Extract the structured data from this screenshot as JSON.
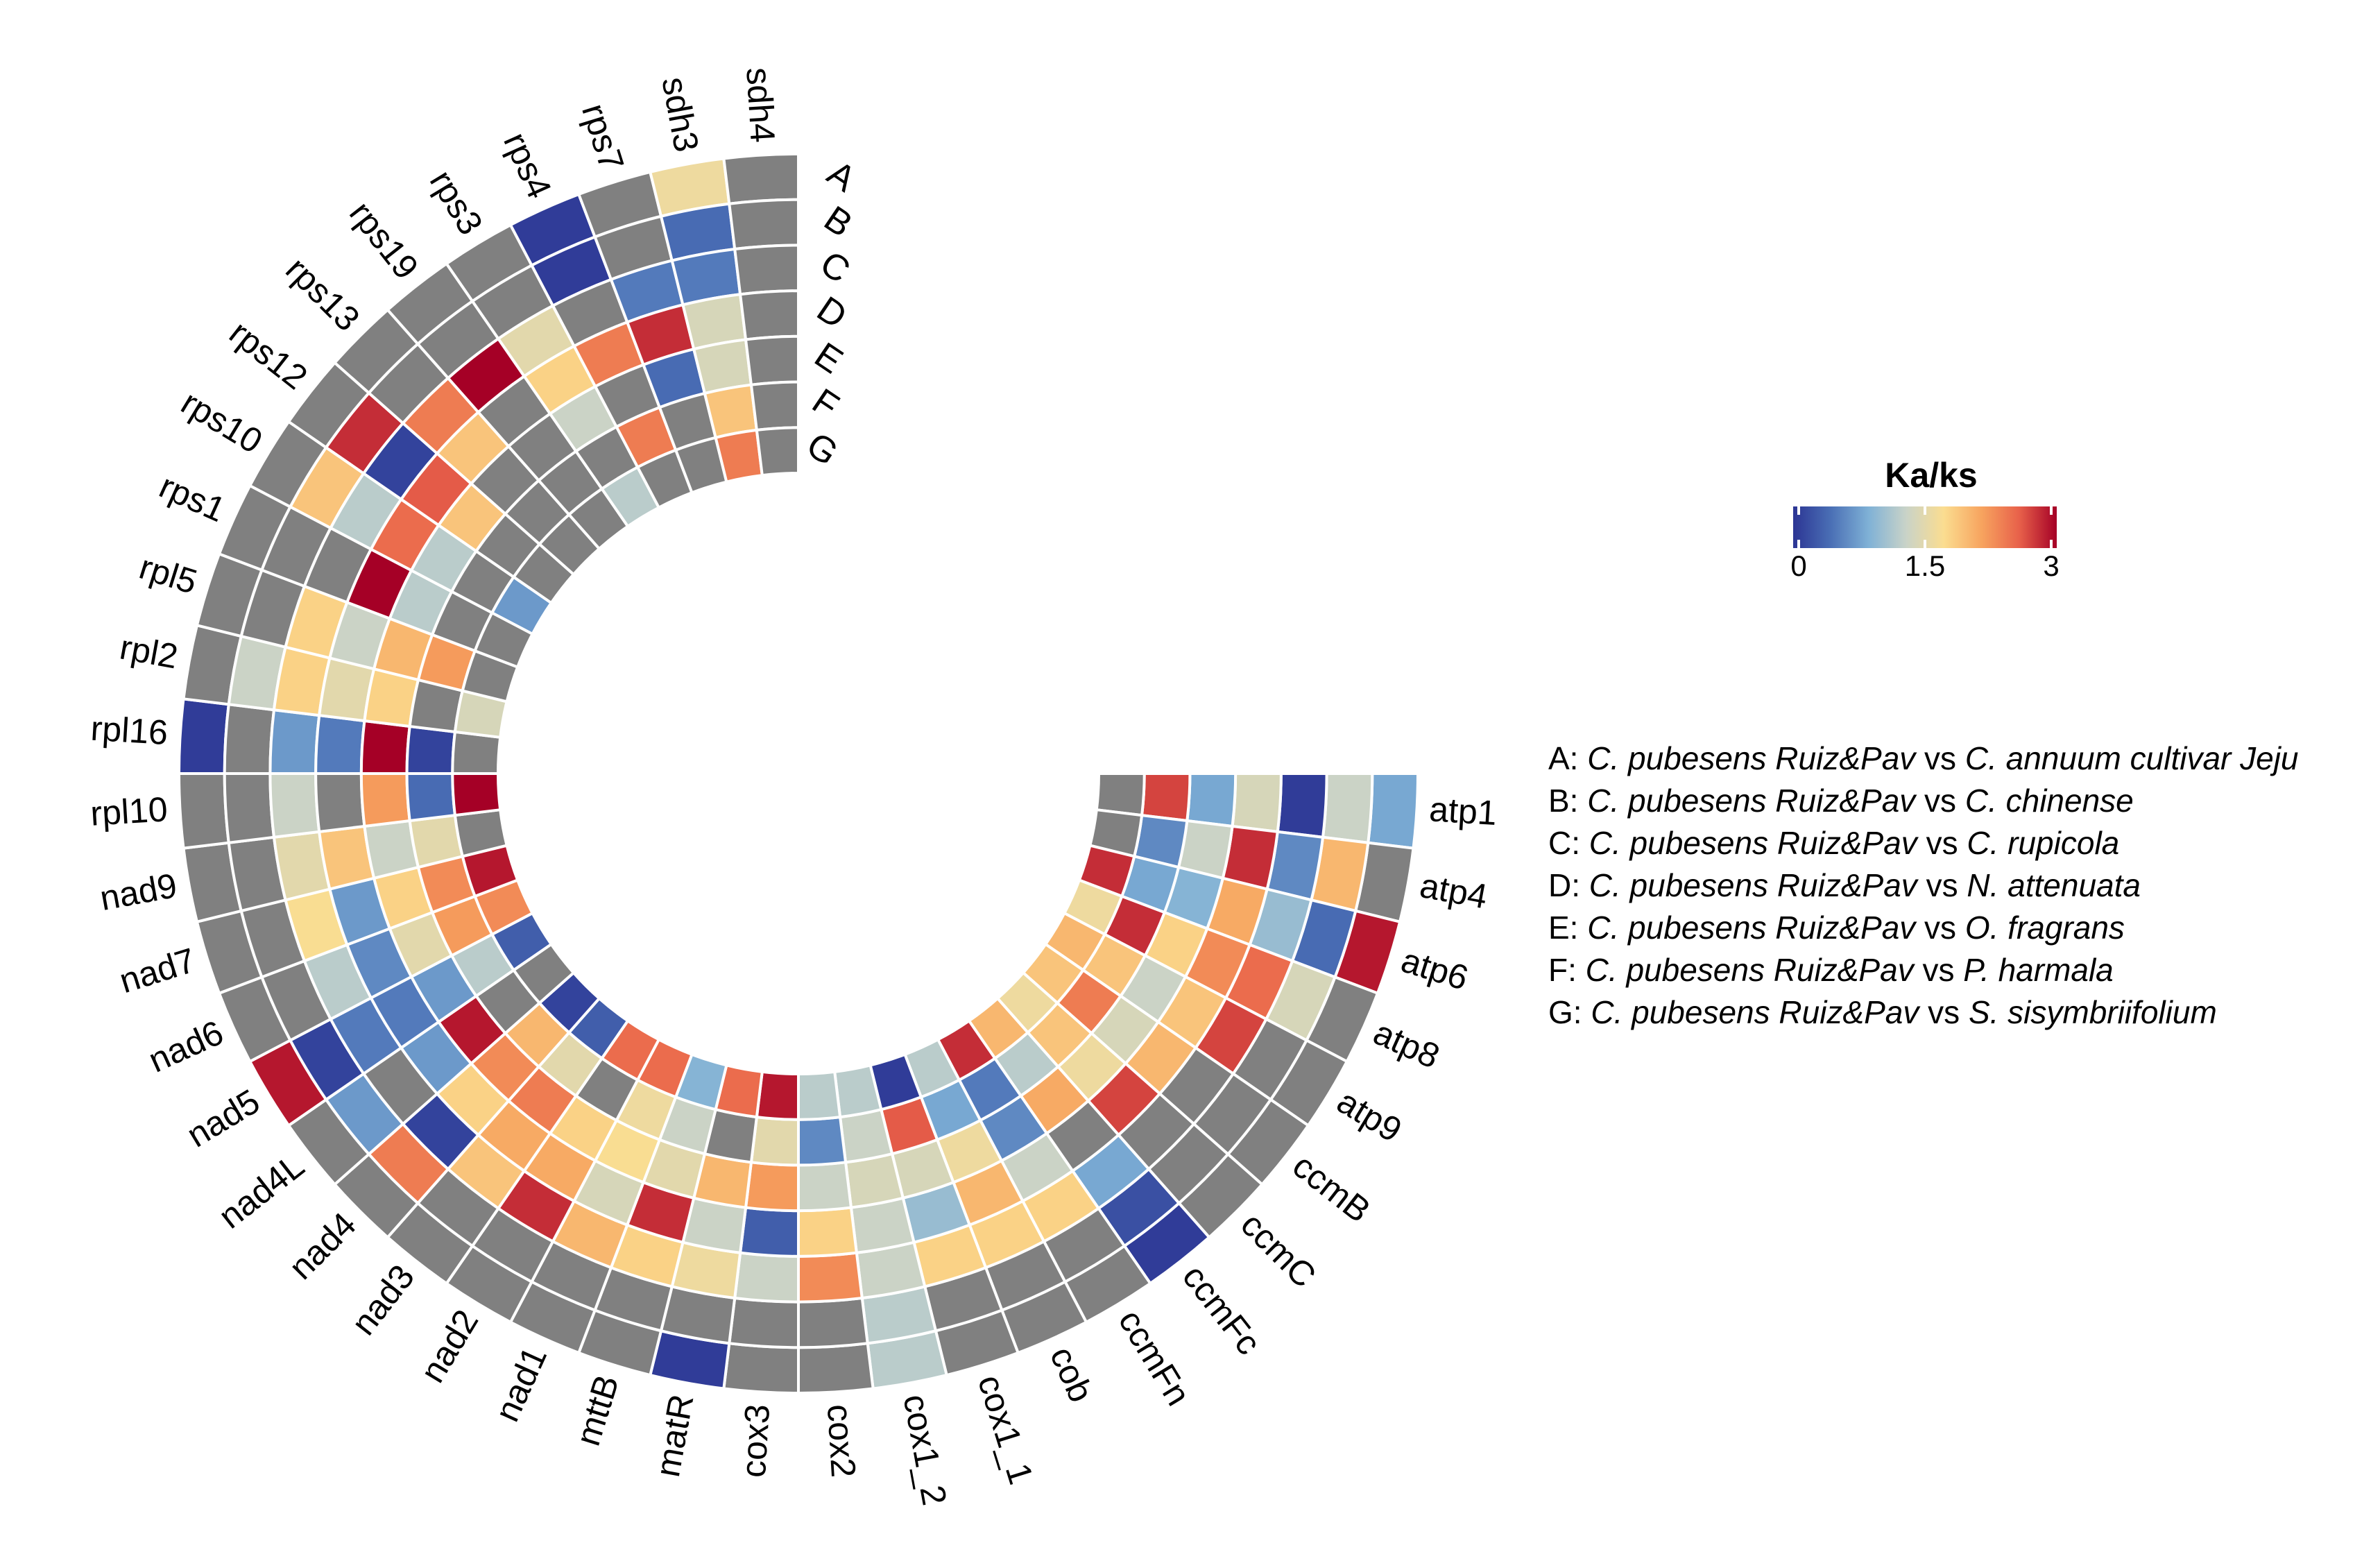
{
  "chart_data": {
    "type": "circular-heatmap",
    "title": "",
    "color_scale": {
      "title": "Ka/ks",
      "min": 0,
      "max": 3,
      "ticks": [
        {
          "value": 0,
          "label": "0"
        },
        {
          "value": 1.5,
          "label": "1.5"
        },
        {
          "value": 3,
          "label": "3"
        }
      ],
      "stops": [
        "#2c3594",
        "#4a6fb5",
        "#7fb1d6",
        "#c9d3c8",
        "#fbdd90",
        "#f7a45f",
        "#e8614a",
        "#a50026"
      ],
      "missing_color": "#808080"
    },
    "rows": [
      "A",
      "B",
      "C",
      "D",
      "E",
      "F",
      "G"
    ],
    "row_descriptions": [
      {
        "key": "A",
        "prefix": "A: ",
        "species1": "C. pubesens Ruiz&Pav",
        "vs": " vs ",
        "species2": "C. annuum cultivar Jeju"
      },
      {
        "key": "B",
        "prefix": "B: ",
        "species1": "C. pubesens Ruiz&Pav",
        "vs": " vs ",
        "species2": "C. chinense"
      },
      {
        "key": "C",
        "prefix": "C: ",
        "species1": "C. pubesens Ruiz&Pav",
        "vs": " vs ",
        "species2": "C. rupicola"
      },
      {
        "key": "D",
        "prefix": "D: ",
        "species1": "C. pubesens Ruiz&Pav",
        "vs": " vs ",
        "species2": "N. attenuata"
      },
      {
        "key": "E",
        "prefix": "E: ",
        "species1": "C. pubesens Ruiz&Pav",
        "vs": " vs ",
        "species2": "O. fragrans"
      },
      {
        "key": "F",
        "prefix": "F: ",
        "species1": "C. pubesens Ruiz&Pav",
        "vs": " vs ",
        "species2": "P. harmala"
      },
      {
        "key": "G",
        "prefix": "G: ",
        "species1": "C. pubesens Ruiz&Pav",
        "vs": " vs ",
        "species2": "S. sisymbriifolium"
      }
    ],
    "genes": [
      "atp1",
      "atp4",
      "atp6",
      "atp8",
      "atp9",
      "ccmB",
      "ccmC",
      "ccmFc",
      "ccmFn",
      "cob",
      "cox1_1",
      "cox1_2",
      "cox2",
      "cox3",
      "matR",
      "mttB",
      "nad1",
      "nad2",
      "nad3",
      "nad4",
      "nad4L",
      "nad5",
      "nad6",
      "nad7",
      "nad9",
      "rpl10",
      "rpl16",
      "rpl2",
      "rpl5",
      "rps1",
      "rps10",
      "rps12",
      "rps13",
      "rps19",
      "rps3",
      "rps4",
      "rps7",
      "sdh3",
      "sdh4"
    ],
    "values": [
      [
        0.8,
        1.3,
        0.05,
        1.4,
        0.8,
        2.7,
        null
      ],
      [
        null,
        2.0,
        0.6,
        2.8,
        1.3,
        0.6,
        null
      ],
      [
        2.9,
        0.4,
        1.0,
        2.1,
        0.9,
        0.8,
        2.8
      ],
      [
        null,
        1.4,
        2.5,
        2.3,
        1.8,
        2.8,
        1.6
      ],
      [
        null,
        null,
        2.7,
        1.9,
        1.3,
        1.9,
        2.0
      ],
      [
        null,
        null,
        null,
        2.0,
        1.4,
        2.4,
        1.9
      ],
      [
        null,
        null,
        null,
        2.7,
        1.6,
        1.9,
        1.6
      ],
      [
        0.05,
        0.2,
        0.8,
        null,
        2.1,
        1.2,
        2.0
      ],
      [
        null,
        null,
        1.8,
        1.3,
        0.6,
        0.5,
        2.8
      ],
      [
        null,
        null,
        1.8,
        2.0,
        1.6,
        0.8,
        1.2
      ],
      [
        null,
        null,
        1.8,
        1.0,
        1.4,
        2.6,
        0.05
      ],
      [
        1.2,
        1.2,
        1.3,
        1.3,
        1.4,
        1.3,
        1.2
      ],
      [
        null,
        null,
        2.3,
        1.8,
        1.3,
        0.6,
        1.2
      ],
      [
        null,
        null,
        1.3,
        0.3,
        2.2,
        1.5,
        2.9
      ],
      [
        0.05,
        null,
        1.6,
        1.3,
        2.0,
        null,
        2.5
      ],
      [
        null,
        null,
        1.8,
        2.8,
        1.5,
        1.3,
        0.9
      ],
      [
        null,
        null,
        2.0,
        1.4,
        1.7,
        1.6,
        2.5
      ],
      [
        null,
        null,
        2.8,
        2.1,
        1.8,
        null,
        2.5
      ],
      [
        null,
        null,
        1.9,
        2.1,
        2.4,
        1.5,
        0.3
      ],
      [
        null,
        2.4,
        0.1,
        1.8,
        2.3,
        2.0,
        0.1
      ],
      [
        null,
        0.7,
        null,
        0.7,
        2.9,
        null,
        null
      ],
      [
        2.9,
        0.1,
        0.5,
        0.5,
        0.7,
        1.2,
        0.3
      ],
      [
        null,
        null,
        1.2,
        0.6,
        1.5,
        2.2,
        2.3
      ],
      [
        null,
        null,
        1.7,
        0.7,
        1.8,
        2.3,
        2.9
      ],
      [
        null,
        null,
        1.5,
        1.9,
        1.3,
        1.5,
        null
      ],
      [
        null,
        null,
        1.3,
        null,
        2.2,
        0.4,
        3.0
      ],
      [
        0.05,
        null,
        0.7,
        0.5,
        3.0,
        0.1,
        null
      ],
      [
        null,
        1.3,
        1.8,
        1.5,
        1.8,
        null,
        1.4
      ],
      [
        null,
        null,
        1.8,
        1.3,
        2.0,
        2.2,
        null
      ],
      [
        null,
        null,
        null,
        3.0,
        1.2,
        null,
        null
      ],
      [
        null,
        1.9,
        1.2,
        2.5,
        1.2,
        null,
        0.7
      ],
      [
        null,
        2.8,
        0.1,
        2.6,
        1.9,
        null,
        null
      ],
      [
        null,
        null,
        2.4,
        1.9,
        null,
        null,
        null
      ],
      [
        null,
        null,
        3.0,
        null,
        null,
        null,
        null
      ],
      [
        null,
        null,
        1.5,
        1.8,
        1.3,
        null,
        1.2
      ],
      [
        0.05,
        0.05,
        null,
        2.4,
        null,
        2.4,
        null
      ],
      [
        null,
        null,
        0.5,
        2.8,
        0.4,
        null,
        null
      ],
      [
        1.6,
        0.4,
        0.5,
        1.4,
        1.4,
        1.9,
        2.4
      ],
      [
        null,
        null,
        null,
        null,
        null,
        null,
        null
      ]
    ]
  }
}
